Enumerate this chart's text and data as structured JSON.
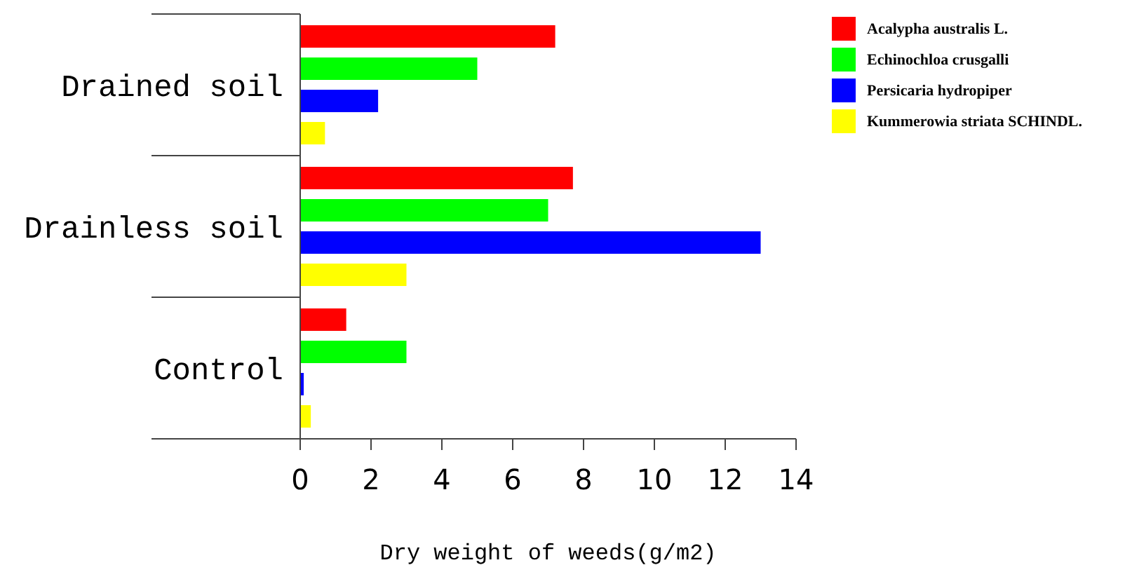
{
  "chart_data": {
    "type": "bar",
    "orientation": "horizontal",
    "xlabel": "Dry weight of weeds(g/m2)",
    "categories": [
      "Drained soil",
      "Drainless soil",
      "Control"
    ],
    "series": [
      {
        "name": "Acalypha australis L.",
        "color": "#ff0000",
        "values": [
          7.2,
          7.7,
          1.3
        ]
      },
      {
        "name": "Echinochloa crusgalli",
        "color": "#00ff00",
        "values": [
          5.0,
          7.0,
          3.0
        ]
      },
      {
        "name": "Persicaria hydropiper",
        "color": "#0000ff",
        "values": [
          2.2,
          13.0,
          0.1
        ]
      },
      {
        "name": "Kummerowia striata SCHINDL.",
        "color": "#ffff00",
        "values": [
          0.7,
          3.0,
          0.3
        ]
      }
    ],
    "xlim": [
      0,
      14
    ],
    "xticks": [
      0,
      2,
      4,
      6,
      8,
      10,
      12,
      14
    ],
    "grid": false,
    "legend": "top right"
  }
}
